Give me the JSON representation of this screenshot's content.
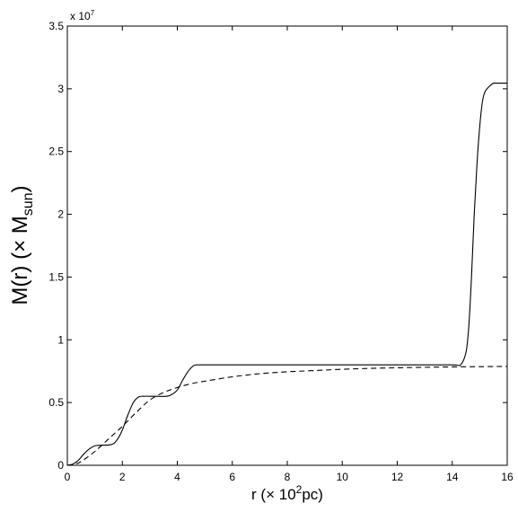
{
  "chart_data": {
    "type": "line",
    "xlabel": {
      "base": "r (",
      "times": "×",
      "mid": " 10",
      "sup": "2",
      "tail": "pc)"
    },
    "ylabel": {
      "base": "M(r) (",
      "times": "×",
      "mid": " M",
      "sub": "sun",
      "tail": ")"
    },
    "y_multiplier": {
      "base": "x 10",
      "sup": "7"
    },
    "xlim": [
      0,
      16
    ],
    "ylim": [
      0,
      3.5
    ],
    "x_ticks": [
      0,
      2,
      4,
      6,
      8,
      10,
      12,
      14,
      16
    ],
    "y_ticks": [
      0,
      0.5,
      1,
      1.5,
      2,
      2.5,
      3,
      3.5
    ],
    "x_tick_labels": [
      "0",
      "2",
      "4",
      "6",
      "8",
      "10",
      "12",
      "14",
      "16"
    ],
    "y_tick_labels": [
      "0",
      "0.5",
      "1",
      "1.5",
      "2",
      "2.5",
      "3",
      "3.5"
    ],
    "grid": false,
    "series": [
      {
        "style": "solid",
        "color": "#000000",
        "x": [
          0,
          0.2,
          0.4,
          0.6,
          0.8,
          1.0,
          1.2,
          1.6,
          1.8,
          2.0,
          2.2,
          2.4,
          2.6,
          2.8,
          3.0,
          3.6,
          3.8,
          4.0,
          4.2,
          4.4,
          4.6,
          4.8,
          5.0,
          6,
          8,
          10,
          12,
          14,
          14.3,
          14.5,
          14.6,
          14.7,
          14.8,
          14.9,
          15.0,
          15.1,
          15.2,
          15.4,
          15.5,
          15.6,
          16
        ],
        "y": [
          0,
          0.01,
          0.04,
          0.09,
          0.13,
          0.155,
          0.16,
          0.165,
          0.2,
          0.28,
          0.4,
          0.5,
          0.545,
          0.55,
          0.55,
          0.55,
          0.565,
          0.6,
          0.68,
          0.75,
          0.795,
          0.8,
          0.8,
          0.8,
          0.8,
          0.8,
          0.8,
          0.8,
          0.8,
          0.9,
          1.1,
          1.5,
          2.0,
          2.4,
          2.7,
          2.9,
          2.98,
          3.03,
          3.045,
          3.045,
          3.045
        ]
      },
      {
        "style": "dashed",
        "color": "#000000",
        "x": [
          0,
          0.3,
          0.5,
          1.0,
          1.5,
          2.0,
          2.5,
          3.0,
          3.5,
          4.0,
          4.5,
          5.0,
          6,
          7,
          8,
          9,
          10,
          11,
          12,
          13,
          14,
          15,
          16
        ],
        "y": [
          0,
          0.01,
          0.03,
          0.11,
          0.21,
          0.31,
          0.42,
          0.52,
          0.58,
          0.62,
          0.65,
          0.67,
          0.705,
          0.73,
          0.745,
          0.755,
          0.765,
          0.772,
          0.777,
          0.781,
          0.784,
          0.786,
          0.788
        ]
      }
    ]
  }
}
